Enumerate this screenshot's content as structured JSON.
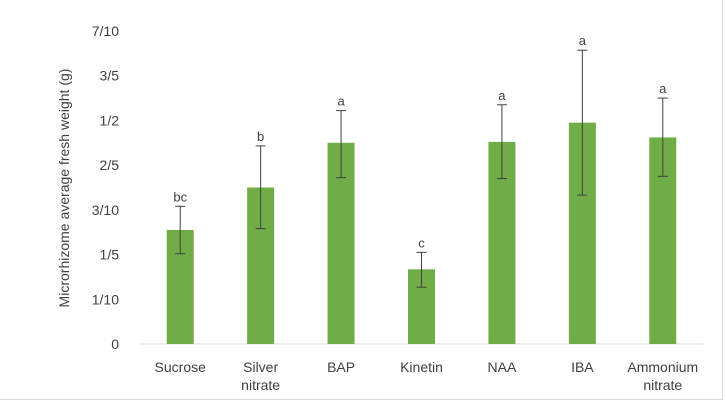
{
  "chart_data": {
    "type": "bar",
    "title": "",
    "xlabel": "",
    "ylabel": "Microrhizome average fresh weight (g)",
    "ylim": [
      0,
      0.7
    ],
    "yticks": [
      {
        "value": 0,
        "label": "0"
      },
      {
        "value": 0.1,
        "label": "1/10"
      },
      {
        "value": 0.2,
        "label": "1/5"
      },
      {
        "value": 0.3,
        "label": "3/10"
      },
      {
        "value": 0.4,
        "label": "2/5"
      },
      {
        "value": 0.5,
        "label": "1/2"
      },
      {
        "value": 0.6,
        "label": "3/5"
      },
      {
        "value": 0.7,
        "label": "7/10"
      }
    ],
    "categories": [
      [
        "Sucrose"
      ],
      [
        "Silver",
        "nitrate"
      ],
      [
        "BAP"
      ],
      [
        "Kinetin"
      ],
      [
        "NAA"
      ],
      [
        "IBA"
      ],
      [
        "Ammonium",
        "nitrate"
      ]
    ],
    "values": [
      0.255,
      0.35,
      0.45,
      0.167,
      0.452,
      0.495,
      0.462
    ],
    "error_high": [
      0.308,
      0.443,
      0.522,
      0.205,
      0.535,
      0.657,
      0.55
    ],
    "error_low": [
      0.202,
      0.258,
      0.372,
      0.127,
      0.37,
      0.333,
      0.375
    ],
    "significance": [
      "bc",
      "b",
      "a",
      "c",
      "a",
      "a",
      "a"
    ],
    "grid": false,
    "legend": "none",
    "colors": {
      "bar": "#70ad47",
      "error": "#404040",
      "axis": "#d9d9d9"
    }
  }
}
